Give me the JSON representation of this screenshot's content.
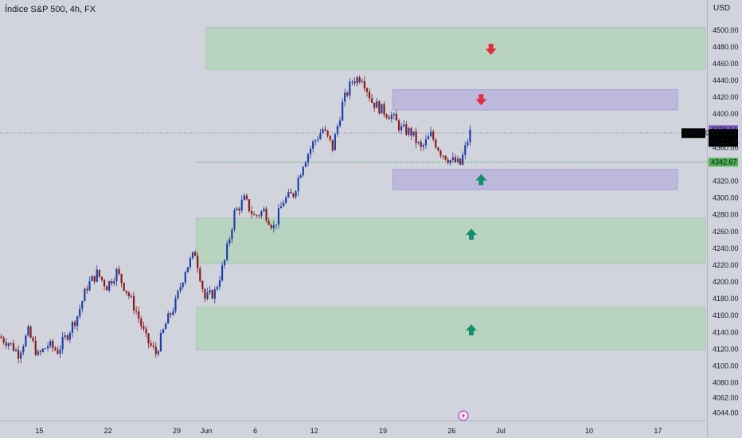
{
  "header": {
    "title": "Índice S&P 500, 4h, FX",
    "currency": "USD"
  },
  "colors": {
    "background": "#d1d4dc",
    "bull": "#1e3fa8",
    "bear": "#8b1a1a",
    "supply_zone": "#b8d4c0",
    "demand_zone": "#b8d4c0",
    "liquidity_zone": "#bdb8dc",
    "arrow_down": "#e03040",
    "arrow_up": "#119070",
    "price_tag": "#000000",
    "purple_tag": "#7e57c2",
    "green_tag": "#4caf50"
  },
  "chart_data": {
    "type": "candlestick",
    "symbol": "SPX500",
    "y_range": [
      4035,
      4515
    ],
    "y_ticks": [
      4500,
      4480,
      4460,
      4440,
      4420,
      4400,
      4360,
      4320,
      4300,
      4280,
      4260,
      4240,
      4220,
      4200,
      4180,
      4160,
      4140,
      4120,
      4100,
      4080,
      4062,
      4044
    ],
    "y_tick_labels": [
      "4500.00",
      "4480.00",
      "4460.00",
      "4440.00",
      "4420.00",
      "4400.00",
      "4360.00",
      "4320.00",
      "4300.00",
      "4280.00",
      "4260.00",
      "4240.00",
      "4220.00",
      "4200.00",
      "4180.00",
      "4160.00",
      "4140.00",
      "4120.00",
      "4100.00",
      "4080.00",
      "4062.00",
      "4044.00"
    ],
    "x_range_days": [
      "2023-05-11",
      "2023-07-22"
    ],
    "x_ticks": [
      {
        "date": "2023-05-15",
        "label": "15"
      },
      {
        "date": "2023-05-22",
        "label": "22"
      },
      {
        "date": "2023-05-29",
        "label": "29"
      },
      {
        "date": "2023-06-01",
        "label": "Jun"
      },
      {
        "date": "2023-06-06",
        "label": "6"
      },
      {
        "date": "2023-06-12",
        "label": "12"
      },
      {
        "date": "2023-06-19",
        "label": "19"
      },
      {
        "date": "2023-06-26",
        "label": "26"
      },
      {
        "date": "2023-07-01",
        "label": "Jul"
      },
      {
        "date": "2023-07-10",
        "label": "10"
      },
      {
        "date": "2023-07-17",
        "label": "17"
      }
    ],
    "price_labels": [
      {
        "value": 4378.14,
        "text": "4378.14",
        "style": "purple"
      },
      {
        "value": 4377.23,
        "text": "4377.23",
        "sub": "02:21:04",
        "style": "black"
      },
      {
        "value": 4342.67,
        "text": "4342.67",
        "style": "green"
      }
    ],
    "reference_lines": [
      {
        "value": 4377.5,
        "style": "dotted-gray"
      },
      {
        "value": 4342.67,
        "style": "dotted-green"
      }
    ],
    "zones": [
      {
        "kind": "supply",
        "from": "2023-06-01",
        "to": "2023-07-22",
        "top": 4503,
        "bottom": 4453
      },
      {
        "kind": "liquidity",
        "from": "2023-06-20",
        "to": "2023-07-19",
        "top": 4429,
        "bottom": 4405
      },
      {
        "kind": "liquidity",
        "from": "2023-06-20",
        "to": "2023-07-19",
        "top": 4334,
        "bottom": 4310
      },
      {
        "kind": "demand",
        "from": "2023-05-31",
        "to": "2023-07-22",
        "top": 4276,
        "bottom": 4222
      },
      {
        "kind": "demand",
        "from": "2023-05-31",
        "to": "2023-07-22",
        "top": 4170,
        "bottom": 4119
      }
    ],
    "arrows": [
      {
        "direction": "down",
        "date": "2023-06-30",
        "value": 4477
      },
      {
        "direction": "down",
        "date": "2023-06-29",
        "value": 4417
      },
      {
        "direction": "up",
        "date": "2023-06-29",
        "value": 4322
      },
      {
        "direction": "up",
        "date": "2023-06-28",
        "value": 4257
      },
      {
        "direction": "up",
        "date": "2023-06-28",
        "value": 4143
      }
    ],
    "close_path": [
      [
        "2023-05-11",
        4135
      ],
      [
        "2023-05-12",
        4128
      ],
      [
        "2023-05-13",
        4115
      ],
      [
        "2023-05-14",
        4140
      ],
      [
        "2023-05-15",
        4112
      ],
      [
        "2023-05-16",
        4125
      ],
      [
        "2023-05-17",
        4118
      ],
      [
        "2023-05-18",
        4138
      ],
      [
        "2023-05-19",
        4160
      ],
      [
        "2023-05-20",
        4195
      ],
      [
        "2023-05-21",
        4210
      ],
      [
        "2023-05-22",
        4195
      ],
      [
        "2023-05-23",
        4212
      ],
      [
        "2023-05-24",
        4190
      ],
      [
        "2023-05-25",
        4165
      ],
      [
        "2023-05-26",
        4132
      ],
      [
        "2023-05-27",
        4115
      ],
      [
        "2023-05-28",
        4150
      ],
      [
        "2023-05-29",
        4175
      ],
      [
        "2023-05-30",
        4215
      ],
      [
        "2023-05-31",
        4235
      ],
      [
        "2023-06-01",
        4180
      ],
      [
        "2023-06-02",
        4188
      ],
      [
        "2023-06-03",
        4225
      ],
      [
        "2023-06-04",
        4282
      ],
      [
        "2023-06-05",
        4298
      ],
      [
        "2023-06-06",
        4278
      ],
      [
        "2023-06-07",
        4285
      ],
      [
        "2023-06-08",
        4265
      ],
      [
        "2023-06-09",
        4297
      ],
      [
        "2023-06-10",
        4305
      ],
      [
        "2023-06-11",
        4342
      ],
      [
        "2023-06-12",
        4365
      ],
      [
        "2023-06-13",
        4382
      ],
      [
        "2023-06-14",
        4360
      ],
      [
        "2023-06-15",
        4412
      ],
      [
        "2023-06-16",
        4440
      ],
      [
        "2023-06-17",
        4445
      ],
      [
        "2023-06-18",
        4415
      ],
      [
        "2023-06-19",
        4405
      ],
      [
        "2023-06-20",
        4398
      ],
      [
        "2023-06-21",
        4382
      ],
      [
        "2023-06-22",
        4378
      ],
      [
        "2023-06-23",
        4358
      ],
      [
        "2023-06-24",
        4375
      ],
      [
        "2023-06-25",
        4355
      ],
      [
        "2023-06-26",
        4345
      ],
      [
        "2023-06-27",
        4340
      ],
      [
        "2023-06-28",
        4378
      ]
    ]
  }
}
